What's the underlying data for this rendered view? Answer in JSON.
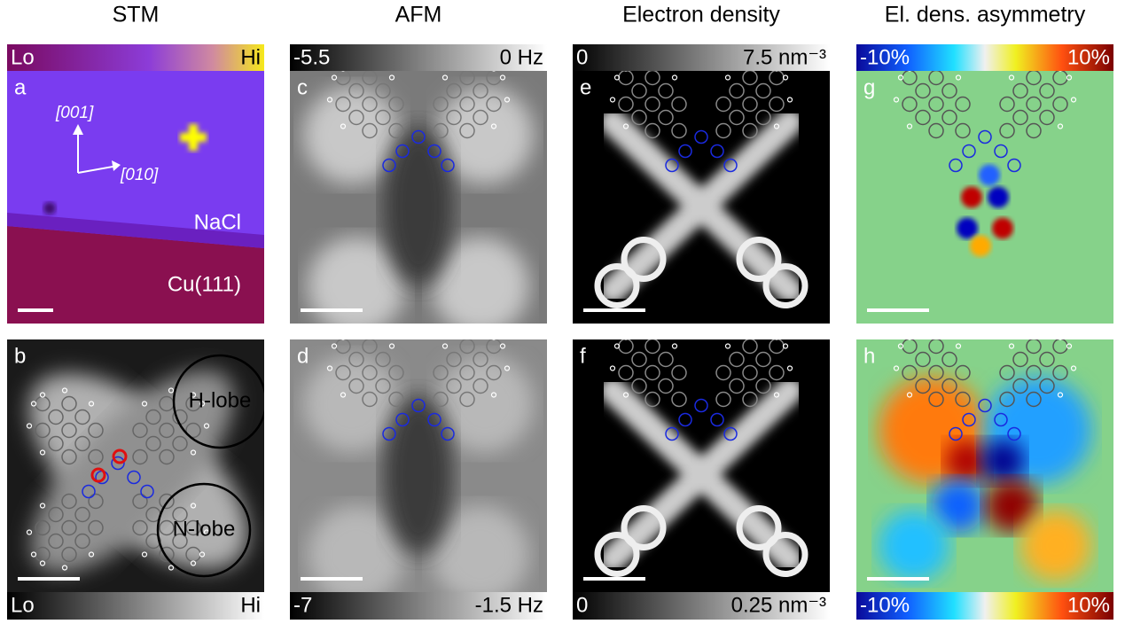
{
  "columns": [
    {
      "title": "STM",
      "top_bar": {
        "low": "Lo",
        "high": "Hi"
      },
      "bottom_bar": {
        "low": "Lo",
        "high": "Hi"
      },
      "panels": [
        {
          "letter": "a",
          "annotations": [
            "[001]",
            "[010]",
            "NaCl",
            "Cu(111)"
          ]
        },
        {
          "letter": "b",
          "annotations": [
            "H-lobe",
            "N-lobe"
          ]
        }
      ]
    },
    {
      "title": "AFM",
      "top_bar": {
        "low": "-5.5",
        "high": "0 Hz"
      },
      "bottom_bar": {
        "low": "-7",
        "high": "-1.5 Hz"
      },
      "panels": [
        {
          "letter": "c",
          "annotations": []
        },
        {
          "letter": "d",
          "annotations": []
        }
      ]
    },
    {
      "title": "Electron density",
      "top_bar": {
        "low": "0",
        "high": "7.5 nm⁻³"
      },
      "bottom_bar": {
        "low": "0",
        "high": "0.25 nm⁻³"
      },
      "panels": [
        {
          "letter": "e",
          "annotations": []
        },
        {
          "letter": "f",
          "annotations": []
        }
      ]
    },
    {
      "title": "El. dens. asymmetry",
      "top_bar": {
        "low": "-10%",
        "high": "10%"
      },
      "bottom_bar": {
        "low": "-10%",
        "high": "10%"
      },
      "panels": [
        {
          "letter": "g",
          "annotations": []
        },
        {
          "letter": "h",
          "annotations": []
        }
      ]
    }
  ]
}
